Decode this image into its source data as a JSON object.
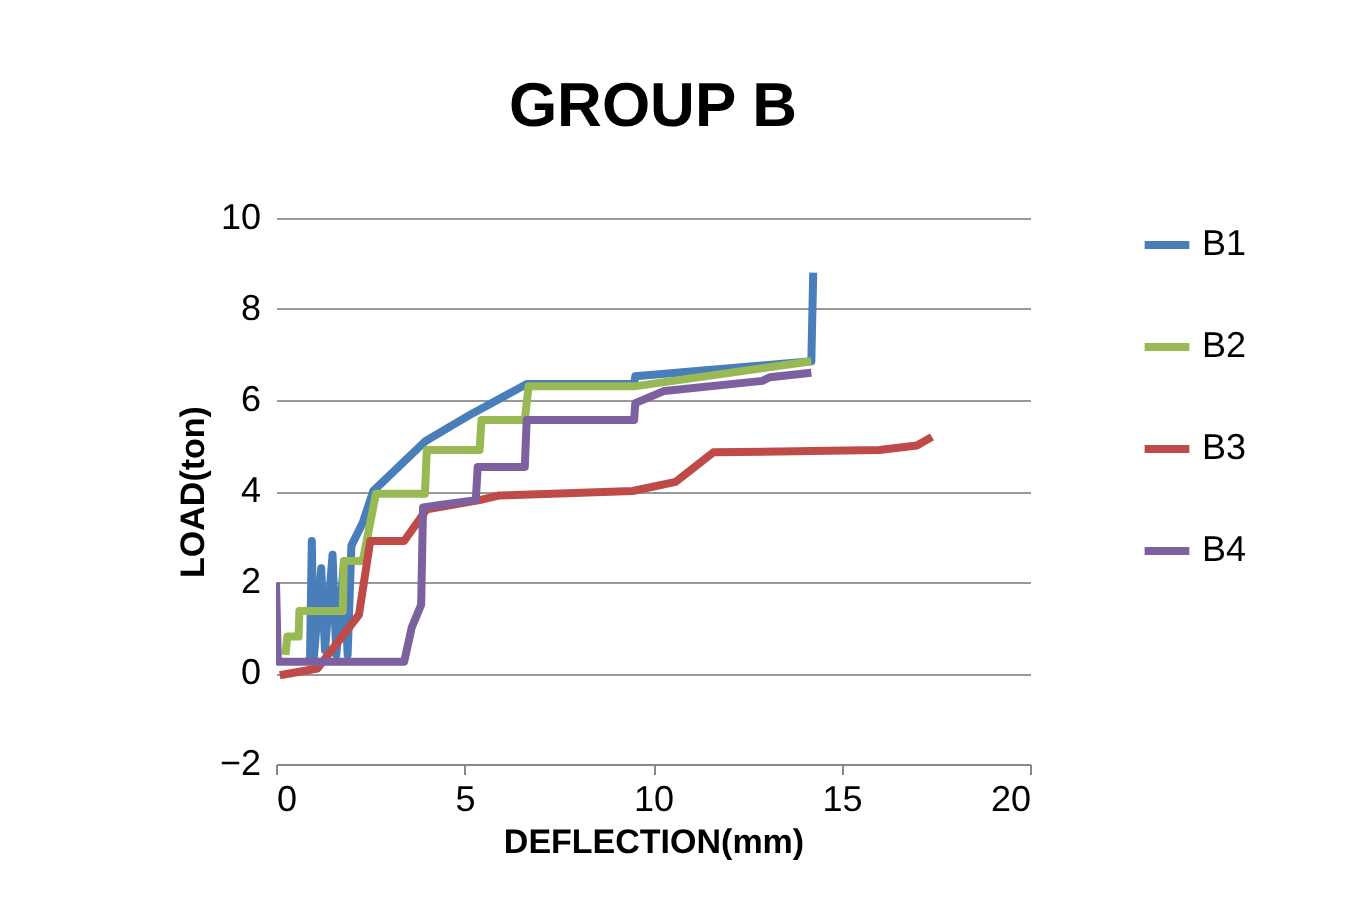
{
  "chart_data": {
    "type": "line",
    "title": "GROUP B",
    "xlabel": "DEFLECTION(mm)",
    "ylabel": "LOAD(ton)",
    "xlim": [
      0,
      20
    ],
    "xticks": [
      0,
      5,
      10,
      15,
      20
    ],
    "ylim": [
      -2,
      10
    ],
    "yticks": [
      -2,
      0,
      2,
      4,
      6,
      8,
      10
    ],
    "grid": "y",
    "legend": "right",
    "marker": "none",
    "line_style": "solid",
    "series": [
      {
        "name": "B1",
        "color": "#4a7ebb",
        "x": [
          0.9,
          0.95,
          1.0,
          1.2,
          1.3,
          1.5,
          1.6,
          1.8,
          1.9,
          2.0,
          2.3,
          2.58,
          3.97,
          5.2,
          6.65,
          9.5,
          9.53,
          14.2,
          14.25
        ],
        "values": [
          0.2,
          2.9,
          0.3,
          2.3,
          0.5,
          2.6,
          0.4,
          2.4,
          0.4,
          2.8,
          3.3,
          4.0,
          5.1,
          5.7,
          6.35,
          6.35,
          6.52,
          6.85,
          8.8
        ]
      },
      {
        "name": "B2",
        "color": "#98b954",
        "x": [
          0.25,
          0.3,
          0.6,
          0.62,
          1.77,
          1.8,
          2.3,
          2.65,
          3.95,
          4.0,
          5.4,
          5.45,
          6.6,
          6.7,
          9.5,
          14.2
        ],
        "values": [
          0.4,
          0.8,
          0.8,
          1.36,
          1.36,
          2.46,
          2.46,
          3.94,
          3.94,
          4.9,
          4.9,
          5.56,
          5.56,
          6.3,
          6.3,
          6.85
        ]
      },
      {
        "name": "B3",
        "color": "#be4b48",
        "x": [
          0.1,
          1.1,
          2.2,
          2.5,
          3.4,
          4.0,
          5.4,
          5.9,
          9.46,
          10.6,
          11.6,
          16.0,
          17.0,
          17.4
        ],
        "values": [
          -0.05,
          0.1,
          1.28,
          2.9,
          2.9,
          3.6,
          3.8,
          3.9,
          4.0,
          4.2,
          4.85,
          4.9,
          5.0,
          5.19
        ]
      },
      {
        "name": "B4",
        "color": "#7d60a0",
        "x": [
          0.0,
          0.05,
          3.4,
          3.6,
          3.85,
          3.9,
          4.4,
          5.3,
          5.35,
          6.6,
          6.65,
          9.5,
          9.53,
          10.3,
          12.9,
          13.1,
          14.2
        ],
        "values": [
          1.99,
          0.25,
          0.25,
          1.0,
          1.5,
          3.64,
          3.7,
          3.8,
          4.53,
          4.53,
          5.56,
          5.56,
          5.93,
          6.2,
          6.42,
          6.5,
          6.6
        ]
      }
    ]
  }
}
